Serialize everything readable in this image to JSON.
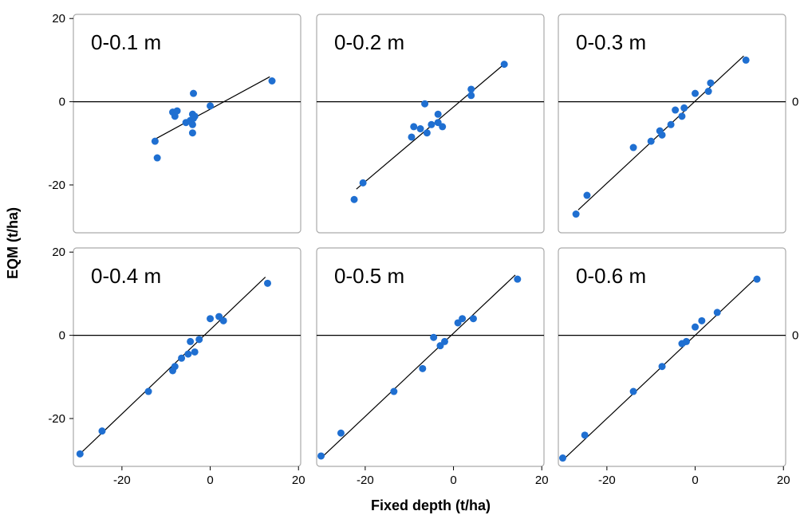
{
  "chart_data": {
    "type": "scatter",
    "xlabel": "Fixed depth (t/ha)",
    "ylabel": "EQM (t/ha)",
    "x_ticks": [
      -20,
      0,
      20
    ],
    "y_ticks": [
      -20,
      0,
      20
    ],
    "right_zero_label": "0",
    "xlim": [
      -31,
      20.5
    ],
    "ylim": [
      -31.5,
      21
    ],
    "grid": false,
    "legend": "none",
    "point_color": "#1f6fd1",
    "panels": [
      {
        "label": "0-0.1 m",
        "points": [
          [
            -12.5,
            -9.5
          ],
          [
            -12,
            -13.5
          ],
          [
            -8.5,
            -2.5
          ],
          [
            -8,
            -3.5
          ],
          [
            -7.5,
            -2.2
          ],
          [
            -5.5,
            -5
          ],
          [
            -4.5,
            -4.5
          ],
          [
            -4,
            -3
          ],
          [
            -4,
            -5.5
          ],
          [
            -4,
            -7.5
          ],
          [
            -3.8,
            -4
          ],
          [
            -3.8,
            2
          ],
          [
            -3.5,
            -3.5
          ],
          [
            0,
            -1
          ],
          [
            14,
            5
          ]
        ],
        "fit": [
          [
            -12.5,
            -9
          ],
          [
            13.5,
            6
          ]
        ]
      },
      {
        "label": "0-0.2 m",
        "points": [
          [
            -22.5,
            -23.5
          ],
          [
            -20.5,
            -19.5
          ],
          [
            -9.5,
            -8.5
          ],
          [
            -9,
            -6
          ],
          [
            -7.5,
            -6.5
          ],
          [
            -6.5,
            -0.5
          ],
          [
            -6,
            -7.5
          ],
          [
            -5,
            -5.5
          ],
          [
            -3.5,
            -3
          ],
          [
            -3.5,
            -5
          ],
          [
            -2.5,
            -6
          ],
          [
            4,
            3
          ],
          [
            4,
            1.5
          ],
          [
            11.5,
            9
          ]
        ],
        "fit": [
          [
            -22,
            -21
          ],
          [
            12,
            9.5
          ]
        ]
      },
      {
        "label": "0-0.3 m",
        "points": [
          [
            -27,
            -27
          ],
          [
            -24.5,
            -22.5
          ],
          [
            -14,
            -11
          ],
          [
            -10,
            -9.5
          ],
          [
            -8,
            -7
          ],
          [
            -7.5,
            -8
          ],
          [
            -5.5,
            -5.5
          ],
          [
            -4.5,
            -2
          ],
          [
            -3,
            -3.5
          ],
          [
            -2.5,
            -1.5
          ],
          [
            0,
            2
          ],
          [
            3,
            2.5
          ],
          [
            3.5,
            4.5
          ],
          [
            11.5,
            10
          ]
        ],
        "fit": [
          [
            -26.5,
            -26
          ],
          [
            11,
            11
          ]
        ]
      },
      {
        "label": "0-0.4 m",
        "points": [
          [
            -29.5,
            -28.5
          ],
          [
            -24.5,
            -23
          ],
          [
            -14,
            -13.5
          ],
          [
            -8.5,
            -8.5
          ],
          [
            -8,
            -7.5
          ],
          [
            -6.5,
            -5.5
          ],
          [
            -5,
            -4.5
          ],
          [
            -4.5,
            -1.5
          ],
          [
            -3.5,
            -4
          ],
          [
            -2.5,
            -1
          ],
          [
            0,
            4
          ],
          [
            2,
            4.5
          ],
          [
            3,
            3.5
          ],
          [
            13,
            12.5
          ]
        ],
        "fit": [
          [
            -29.5,
            -28.5
          ],
          [
            12.5,
            14
          ]
        ]
      },
      {
        "label": "0-0.5 m",
        "points": [
          [
            -30,
            -29
          ],
          [
            -25.5,
            -23.5
          ],
          [
            -13.5,
            -13.5
          ],
          [
            -7,
            -8
          ],
          [
            -4.5,
            -0.5
          ],
          [
            -3,
            -2.5
          ],
          [
            -2,
            -1.5
          ],
          [
            1,
            3
          ],
          [
            2,
            4
          ],
          [
            4.5,
            4
          ],
          [
            14.5,
            13.5
          ]
        ],
        "fit": [
          [
            -30,
            -29.5
          ],
          [
            14,
            14.5
          ]
        ]
      },
      {
        "label": "0-0.6 m",
        "points": [
          [
            -30,
            -29.5
          ],
          [
            -25,
            -24
          ],
          [
            -14,
            -13.5
          ],
          [
            -7.5,
            -7.5
          ],
          [
            -3,
            -2
          ],
          [
            -2,
            -1.5
          ],
          [
            0,
            2
          ],
          [
            1.5,
            3.5
          ],
          [
            5,
            5.5
          ],
          [
            14,
            13.5
          ]
        ],
        "fit": [
          [
            -29.5,
            -29.5
          ],
          [
            14,
            14
          ]
        ]
      }
    ]
  }
}
